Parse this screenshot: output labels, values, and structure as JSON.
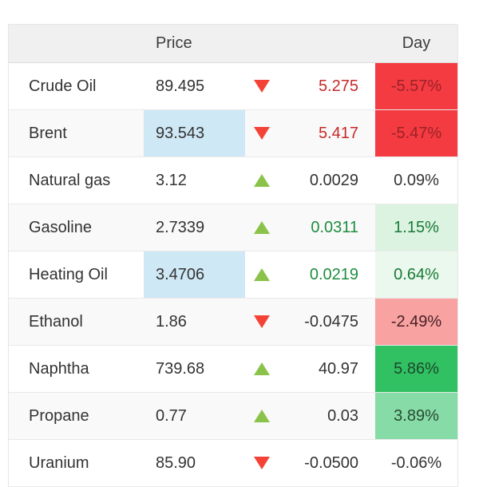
{
  "header": {
    "price_label": "Price",
    "day_label": "Day"
  },
  "colors": {
    "up_triangle": "#8bc34a",
    "down_triangle": "#f44336",
    "neutral_text": "#333333",
    "red_text": "#c62a2a",
    "green_text": "#1e8e3e",
    "strong_red_bg": "#f43b42",
    "strong_red_bg_text": "#9c2127",
    "flash_blue_bg": "#cfe8f5",
    "header_bg": "#f0f0f0"
  },
  "rows": [
    {
      "name": "Crude Oil",
      "price": "89.495",
      "price_bg": null,
      "direction": "down",
      "change": "5.275",
      "change_color": "#c62a2a",
      "day": "-5.57%",
      "day_bg": "#f43b42",
      "day_color": "#9c2127"
    },
    {
      "name": "Brent",
      "price": "93.543",
      "price_bg": "#cfe8f5",
      "direction": "down",
      "change": "5.417",
      "change_color": "#c62a2a",
      "day": "-5.47%",
      "day_bg": "#f43b42",
      "day_color": "#9c2127"
    },
    {
      "name": "Natural gas",
      "price": "3.12",
      "price_bg": null,
      "direction": "up",
      "change": "0.0029",
      "change_color": "#333333",
      "day": "0.09%",
      "day_bg": null,
      "day_color": "#333333"
    },
    {
      "name": "Gasoline",
      "price": "2.7339",
      "price_bg": null,
      "direction": "up",
      "change": "0.0311",
      "change_color": "#1e8e3e",
      "day": "1.15%",
      "day_bg": "#ddf3e2",
      "day_color": "#187a34"
    },
    {
      "name": "Heating Oil",
      "price": "3.4706",
      "price_bg": "#cfe8f5",
      "direction": "up",
      "change": "0.0219",
      "change_color": "#1e8e3e",
      "day": "0.64%",
      "day_bg": "#eaf8ee",
      "day_color": "#187a34"
    },
    {
      "name": "Ethanol",
      "price": "1.86",
      "price_bg": null,
      "direction": "down",
      "change": "-0.0475",
      "change_color": "#333333",
      "day": "-2.49%",
      "day_bg": "#f9a2a2",
      "day_color": "#472125"
    },
    {
      "name": "Naphtha",
      "price": "739.68",
      "price_bg": null,
      "direction": "up",
      "change": "40.97",
      "change_color": "#333333",
      "day": "5.86%",
      "day_bg": "#31c162",
      "day_color": "#1b4a2c"
    },
    {
      "name": "Propane",
      "price": "0.77",
      "price_bg": null,
      "direction": "up",
      "change": "0.03",
      "change_color": "#333333",
      "day": "3.89%",
      "day_bg": "#87dba6",
      "day_color": "#274a33"
    },
    {
      "name": "Uranium",
      "price": "85.90",
      "price_bg": null,
      "direction": "down",
      "change": "-0.0500",
      "change_color": "#333333",
      "day": "-0.06%",
      "day_bg": null,
      "day_color": "#333333"
    }
  ]
}
